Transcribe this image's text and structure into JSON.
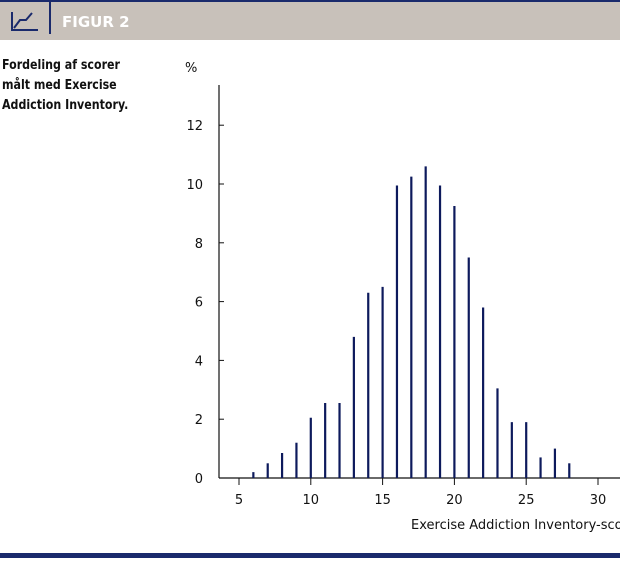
{
  "header": {
    "title": "FIGUR 2",
    "icon": "line-chart-icon"
  },
  "caption": "Fordeling af scorer målt med Exercise Addiction Inventory.",
  "chart_data": {
    "type": "bar",
    "title": "",
    "xlabel": "Exercise Addiction Inventory-score",
    "ylabel": "%",
    "x": [
      6,
      7,
      8,
      9,
      10,
      11,
      12,
      13,
      14,
      15,
      16,
      17,
      18,
      19,
      20,
      21,
      22,
      23,
      24,
      25,
      26,
      27,
      28
    ],
    "values": [
      0.2,
      0.5,
      0.85,
      1.2,
      2.05,
      2.55,
      2.55,
      4.8,
      6.3,
      6.5,
      9.95,
      10.25,
      10.6,
      9.95,
      9.25,
      7.5,
      5.8,
      3.05,
      1.9,
      1.9,
      0.7,
      1.0,
      0.5
    ],
    "xticks": [
      5,
      10,
      15,
      20,
      25,
      30
    ],
    "yticks": [
      0,
      2,
      4,
      6,
      8,
      10,
      12
    ],
    "xlim": [
      3.6,
      32
    ],
    "ylim": [
      0,
      12
    ],
    "grid": false,
    "bar_color": "#0d1a5c"
  }
}
